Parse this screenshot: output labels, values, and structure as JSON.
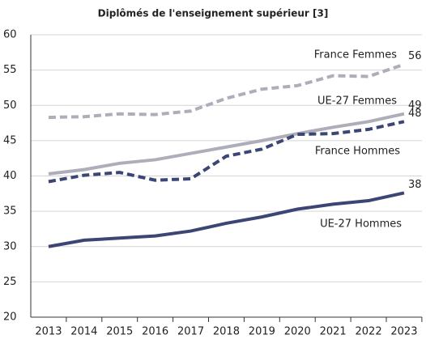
{
  "chart_data": {
    "type": "line",
    "title": "Diplômés de l'enseignement supérieur [3]",
    "categories": [
      "2013",
      "2014",
      "2015",
      "2016",
      "2017",
      "2018",
      "2019",
      "2020",
      "2021",
      "2022",
      "2023"
    ],
    "series": [
      {
        "name": "France Femmes",
        "color": "#aeaebb",
        "dash": true,
        "values": [
          48.3,
          48.4,
          48.8,
          48.7,
          49.2,
          51.0,
          52.3,
          52.8,
          54.2,
          54.1,
          55.8
        ],
        "value_labels": [
          null,
          null,
          null,
          null,
          null,
          null,
          null,
          null,
          null,
          null,
          "56"
        ]
      },
      {
        "name": "UE-27 Femmes",
        "color": "#aeaebb",
        "dash": false,
        "values": [
          40.3,
          40.9,
          41.8,
          42.3,
          43.2,
          44.1,
          45.0,
          46.0,
          46.9,
          47.7,
          48.8
        ],
        "value_labels": [
          null,
          null,
          null,
          null,
          null,
          null,
          null,
          null,
          null,
          null,
          "49"
        ]
      },
      {
        "name": "France Hommes",
        "color": "#3b4675",
        "dash": true,
        "values": [
          39.2,
          40.1,
          40.5,
          39.4,
          39.6,
          42.8,
          43.8,
          45.9,
          46.0,
          46.6,
          47.7
        ],
        "value_labels": [
          null,
          null,
          null,
          null,
          null,
          null,
          null,
          null,
          null,
          null,
          "48"
        ]
      },
      {
        "name": "UE-27 Hommes",
        "color": "#3b4675",
        "dash": false,
        "values": [
          30.0,
          30.9,
          31.2,
          31.5,
          32.2,
          33.3,
          34.2,
          35.3,
          36.0,
          36.5,
          37.6
        ],
        "value_labels": [
          null,
          null,
          null,
          null,
          null,
          null,
          null,
          null,
          null,
          null,
          "38"
        ]
      }
    ],
    "ylim": [
      20,
      60
    ],
    "yticks": [
      20,
      25,
      30,
      35,
      40,
      45,
      50,
      55,
      60
    ],
    "grid": true
  }
}
